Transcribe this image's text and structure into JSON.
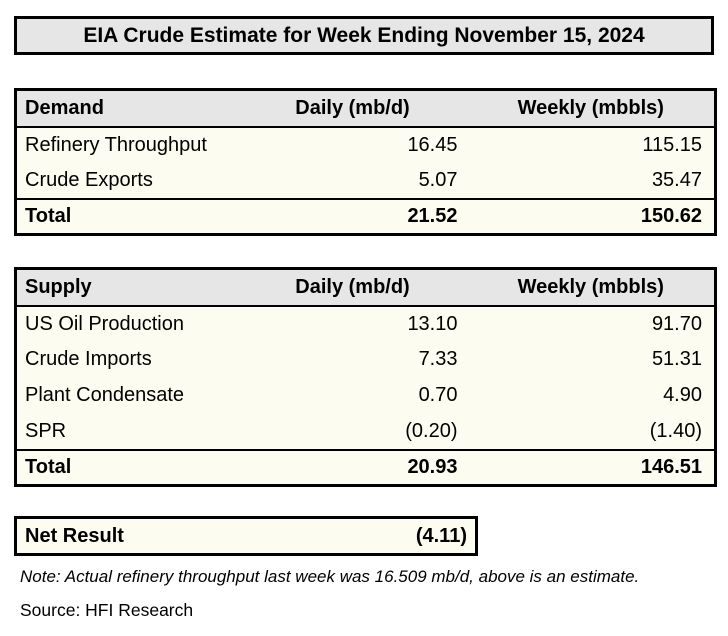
{
  "title": "EIA Crude Estimate for Week Ending November 15, 2024",
  "demand_table": {
    "columns": [
      "Demand",
      "Daily (mb/d)",
      "Weekly (mbbls)"
    ],
    "rows": [
      {
        "label": "Refinery Throughput",
        "daily": "16.45",
        "weekly": "115.15"
      },
      {
        "label": "Crude Exports",
        "daily": "5.07",
        "weekly": "35.47"
      }
    ],
    "total": {
      "label": "Total",
      "daily": "21.52",
      "weekly": "150.62"
    }
  },
  "supply_table": {
    "columns": [
      "Supply",
      "Daily (mb/d)",
      "Weekly (mbbls)"
    ],
    "rows": [
      {
        "label": "US Oil Production",
        "daily": "13.10",
        "weekly": "91.70"
      },
      {
        "label": "Crude Imports",
        "daily": "7.33",
        "weekly": "51.31"
      },
      {
        "label": "Plant Condensate",
        "daily": "0.70",
        "weekly": "4.90"
      },
      {
        "label": "SPR",
        "daily": "(0.20)",
        "weekly": "(1.40)"
      }
    ],
    "total": {
      "label": "Total",
      "daily": "20.93",
      "weekly": "146.51"
    }
  },
  "net_result": {
    "label": "Net Result",
    "value": "(4.11)"
  },
  "note": "Note: Actual refinery throughput last week was 16.509 mb/d, above is an estimate.",
  "source": "Source: HFI Research",
  "colors": {
    "header_bg": "#e7e6e6",
    "body_bg": "#fcfcf0",
    "border": "#000000",
    "text": "#000000",
    "page_bg": "#ffffff"
  }
}
